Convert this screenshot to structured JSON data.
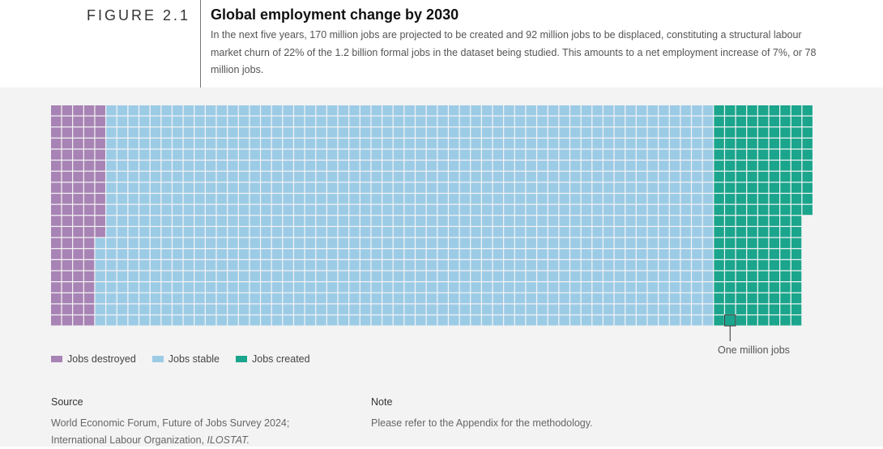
{
  "figure_label": "FIGURE 2.1",
  "title": "Global employment change by 2030",
  "subtitle": "In the next five years, 170 million jobs are projected to be created and 92 million jobs to be displaced, constituting a structural labour market churn of 22% of the 1.2 billion formal jobs in the dataset being studied. This amounts to a net employment increase of 7%, or 78 million jobs.",
  "colors": {
    "destroyed": "#a883b5",
    "stable": "#9ccbe6",
    "created": "#1aa58c",
    "panel": "#f3f3f3"
  },
  "chart_data": {
    "type": "waffle",
    "unit": "One million jobs",
    "rows": 20,
    "series": [
      {
        "name": "Jobs destroyed",
        "value": 92
      },
      {
        "name": "Jobs stable",
        "value": 1108
      },
      {
        "name": "Jobs created",
        "value": 170
      }
    ],
    "legend": [
      "Jobs destroyed",
      "Jobs stable",
      "Jobs created"
    ],
    "annotation": "One million jobs"
  },
  "source": {
    "heading": "Source",
    "line1": "World Economic Forum, Future of Jobs Survey 2024;",
    "line2_prefix": "International Labour Organization, ",
    "line2_italic": "ILOSTAT."
  },
  "note": {
    "heading": "Note",
    "text": "Please refer to the Appendix for the methodology."
  }
}
